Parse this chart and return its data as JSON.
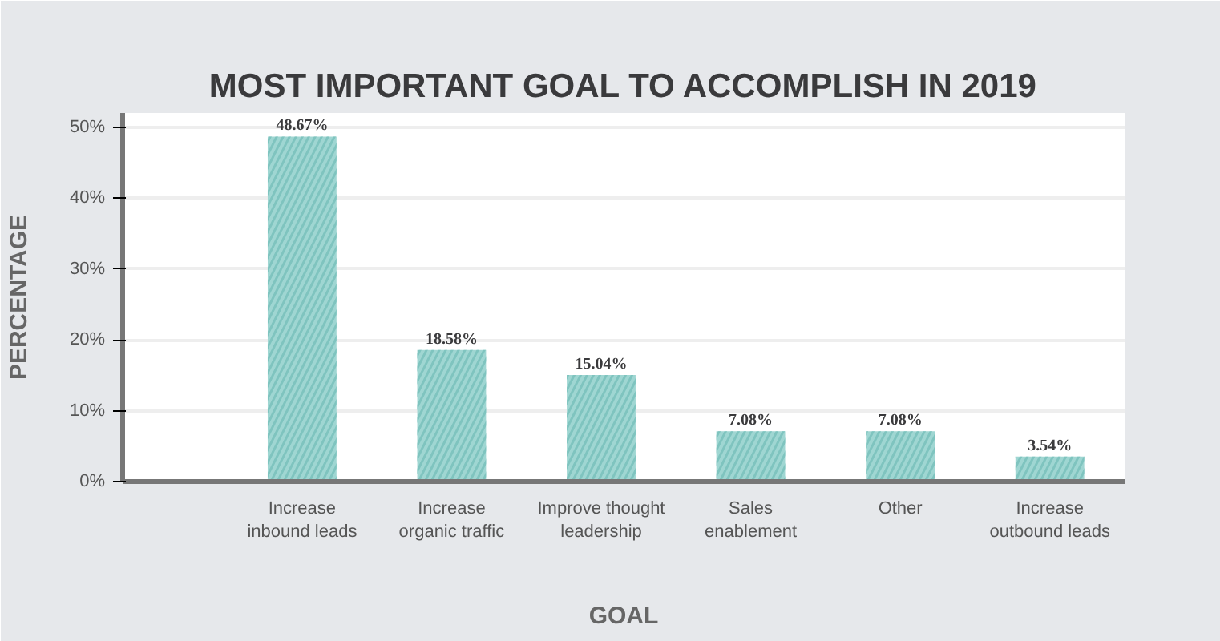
{
  "chart_data": {
    "type": "bar",
    "title": "MOST IMPORTANT GOAL TO ACCOMPLISH IN 2019",
    "xlabel": "GOAL",
    "ylabel": "PERCENTAGE",
    "categories": [
      "Increase\ninbound leads",
      "Increase\norganic traffic",
      "Improve thought\nleadership",
      "Sales\nenablement",
      "Other",
      "Increase\noutbound leads"
    ],
    "values": [
      48.67,
      18.58,
      15.04,
      7.08,
      7.08,
      3.54
    ],
    "value_labels": [
      "48.67%",
      "18.58%",
      "15.04%",
      "7.08%",
      "7.08%",
      "3.54%"
    ],
    "color": "#9fd6d2",
    "ylim": [
      0,
      52
    ],
    "yticks": [
      {
        "value": 0,
        "label": "0%"
      },
      {
        "value": 10,
        "label": "10%"
      },
      {
        "value": 20,
        "label": "20%"
      },
      {
        "value": 30,
        "label": "30%"
      },
      {
        "value": 40,
        "label": "40%"
      },
      {
        "value": 50,
        "label": "50%"
      }
    ],
    "grid": "y"
  }
}
